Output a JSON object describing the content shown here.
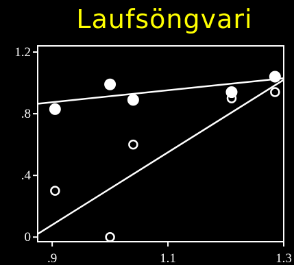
{
  "chart_data": {
    "type": "scatter",
    "title": "Laufsöngvari",
    "xlabel": "",
    "ylabel": "",
    "xlim": [
      0.875,
      1.3
    ],
    "ylim": [
      -0.03,
      1.24
    ],
    "x_ticks": [
      0.9,
      1.1,
      1.3
    ],
    "x_tick_labels": [
      ".9",
      "1.1",
      "1.3"
    ],
    "y_ticks": [
      0,
      0.4,
      0.8,
      1.2
    ],
    "y_tick_labels": [
      "0",
      ".4",
      ".8",
      "1.2"
    ],
    "grid": false,
    "series": [
      {
        "marker": "filled-circle",
        "color": "#ffffff",
        "points": [
          {
            "x": 0.905,
            "y": 0.83
          },
          {
            "x": 1.0,
            "y": 0.99
          },
          {
            "x": 1.04,
            "y": 0.89
          },
          {
            "x": 1.21,
            "y": 0.94
          },
          {
            "x": 1.285,
            "y": 1.04
          }
        ],
        "fit_line": {
          "x": [
            0.875,
            1.3
          ],
          "y": [
            0.865,
            1.03
          ]
        }
      },
      {
        "marker": "open-circle",
        "color": "#ffffff",
        "points": [
          {
            "x": 0.905,
            "y": 0.3
          },
          {
            "x": 1.0,
            "y": 0.0
          },
          {
            "x": 1.04,
            "y": 0.6
          },
          {
            "x": 1.21,
            "y": 0.9
          },
          {
            "x": 1.285,
            "y": 0.94
          }
        ],
        "fit_line": {
          "x": [
            0.875,
            1.3
          ],
          "y": [
            0.02,
            1.02
          ]
        }
      }
    ]
  }
}
